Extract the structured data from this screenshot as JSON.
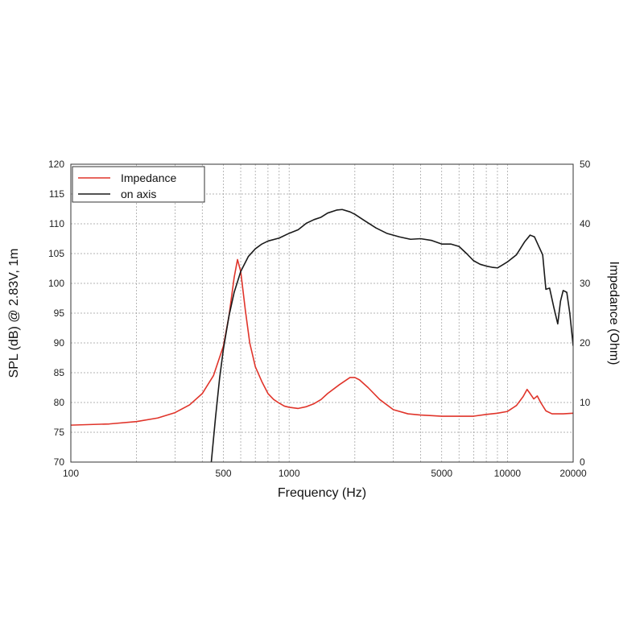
{
  "chart_data": {
    "type": "line",
    "xlabel": "Frequency (Hz)",
    "ylabel_left": "SPL (dB) @ 2.83V, 1m",
    "ylabel_right": "Impedance (Ohm)",
    "x_scale": "log",
    "xlim": [
      100,
      20000
    ],
    "ylim_left": [
      70,
      120
    ],
    "ylim_right": [
      0,
      50
    ],
    "grid": true,
    "legend_position": "top-left",
    "x_ticks": [
      {
        "value": 100,
        "label": "100"
      },
      {
        "value": 500,
        "label": "500"
      },
      {
        "value": 1000,
        "label": "1000"
      },
      {
        "value": 5000,
        "label": "5000"
      },
      {
        "value": 10000,
        "label": "10000"
      },
      {
        "value": 20000,
        "label": "20000"
      }
    ],
    "y_ticks_left": [
      {
        "value": 70,
        "label": "70"
      },
      {
        "value": 75,
        "label": "75"
      },
      {
        "value": 80,
        "label": "80"
      },
      {
        "value": 85,
        "label": "85"
      },
      {
        "value": 90,
        "label": "90"
      },
      {
        "value": 95,
        "label": "95"
      },
      {
        "value": 100,
        "label": "100"
      },
      {
        "value": 105,
        "label": "105"
      },
      {
        "value": 110,
        "label": "110"
      },
      {
        "value": 115,
        "label": "115"
      },
      {
        "value": 120,
        "label": "120"
      }
    ],
    "y_ticks_right": [
      {
        "value": 0,
        "label": "0"
      },
      {
        "value": 10,
        "label": "10"
      },
      {
        "value": 20,
        "label": "20"
      },
      {
        "value": 30,
        "label": "30"
      },
      {
        "value": 40,
        "label": "40"
      },
      {
        "value": 50,
        "label": "50"
      }
    ],
    "series": [
      {
        "name": "Impedance",
        "axis": "right",
        "color": "#e0342a",
        "points": [
          [
            100,
            6.2
          ],
          [
            150,
            6.4
          ],
          [
            200,
            6.8
          ],
          [
            250,
            7.4
          ],
          [
            300,
            8.3
          ],
          [
            350,
            9.6
          ],
          [
            400,
            11.5
          ],
          [
            450,
            14.5
          ],
          [
            500,
            19.5
          ],
          [
            530,
            24.5
          ],
          [
            560,
            31.0
          ],
          [
            580,
            34.0
          ],
          [
            600,
            32.0
          ],
          [
            630,
            25.5
          ],
          [
            660,
            20.0
          ],
          [
            700,
            16.0
          ],
          [
            750,
            13.5
          ],
          [
            800,
            11.5
          ],
          [
            850,
            10.5
          ],
          [
            900,
            9.9
          ],
          [
            950,
            9.4
          ],
          [
            1000,
            9.2
          ],
          [
            1100,
            9.0
          ],
          [
            1200,
            9.3
          ],
          [
            1300,
            9.8
          ],
          [
            1400,
            10.5
          ],
          [
            1500,
            11.5
          ],
          [
            1700,
            13.0
          ],
          [
            1900,
            14.2
          ],
          [
            2000,
            14.2
          ],
          [
            2100,
            13.8
          ],
          [
            2300,
            12.5
          ],
          [
            2600,
            10.5
          ],
          [
            3000,
            8.8
          ],
          [
            3500,
            8.1
          ],
          [
            4000,
            7.9
          ],
          [
            4500,
            7.8
          ],
          [
            5000,
            7.7
          ],
          [
            6000,
            7.7
          ],
          [
            7000,
            7.7
          ],
          [
            8000,
            8.0
          ],
          [
            9000,
            8.2
          ],
          [
            10000,
            8.5
          ],
          [
            11000,
            9.5
          ],
          [
            11800,
            11.0
          ],
          [
            12300,
            12.2
          ],
          [
            12700,
            11.5
          ],
          [
            13200,
            10.6
          ],
          [
            13700,
            11.1
          ],
          [
            14200,
            10.0
          ],
          [
            15000,
            8.6
          ],
          [
            16000,
            8.1
          ],
          [
            18000,
            8.1
          ],
          [
            20000,
            8.2
          ]
        ]
      },
      {
        "name": "on axis",
        "axis": "left",
        "color": "#1a1a1a",
        "points": [
          [
            440,
            70
          ],
          [
            460,
            77.5
          ],
          [
            480,
            84
          ],
          [
            500,
            89
          ],
          [
            530,
            94.5
          ],
          [
            560,
            98.5
          ],
          [
            600,
            102.0
          ],
          [
            650,
            104.5
          ],
          [
            700,
            105.8
          ],
          [
            750,
            106.6
          ],
          [
            800,
            107.1
          ],
          [
            900,
            107.6
          ],
          [
            1000,
            108.4
          ],
          [
            1100,
            109.0
          ],
          [
            1200,
            110.1
          ],
          [
            1300,
            110.7
          ],
          [
            1400,
            111.1
          ],
          [
            1500,
            111.8
          ],
          [
            1650,
            112.3
          ],
          [
            1750,
            112.4
          ],
          [
            1900,
            112.0
          ],
          [
            2000,
            111.6
          ],
          [
            2200,
            110.6
          ],
          [
            2500,
            109.3
          ],
          [
            2800,
            108.4
          ],
          [
            3200,
            107.8
          ],
          [
            3600,
            107.4
          ],
          [
            4000,
            107.5
          ],
          [
            4500,
            107.2
          ],
          [
            5000,
            106.6
          ],
          [
            5500,
            106.6
          ],
          [
            6000,
            106.2
          ],
          [
            6500,
            105.0
          ],
          [
            7000,
            103.8
          ],
          [
            7500,
            103.2
          ],
          [
            8000,
            102.9
          ],
          [
            8500,
            102.7
          ],
          [
            9000,
            102.6
          ],
          [
            9500,
            103.1
          ],
          [
            10000,
            103.6
          ],
          [
            11000,
            104.8
          ],
          [
            12000,
            107.0
          ],
          [
            12700,
            108.1
          ],
          [
            13300,
            107.8
          ],
          [
            14000,
            106.0
          ],
          [
            14500,
            104.8
          ],
          [
            15000,
            99.0
          ],
          [
            15600,
            99.2
          ],
          [
            16300,
            96.0
          ],
          [
            17000,
            93.2
          ],
          [
            17500,
            97.0
          ],
          [
            18000,
            98.8
          ],
          [
            18700,
            98.5
          ],
          [
            19300,
            95.0
          ],
          [
            20000,
            89.5
          ]
        ]
      }
    ]
  }
}
